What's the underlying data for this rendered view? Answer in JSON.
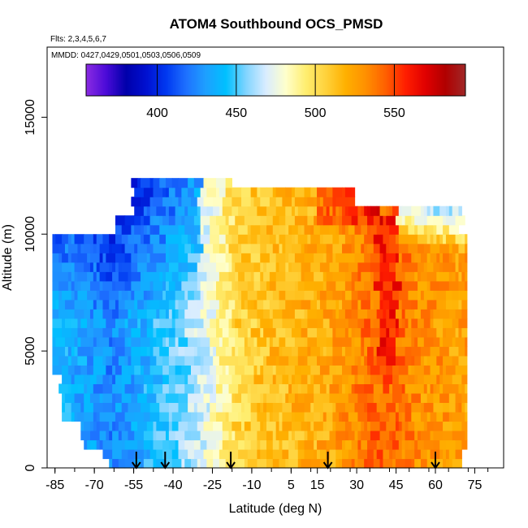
{
  "chart_data": {
    "type": "heatmap",
    "title": "ATOM4 Southbound OCS_PMSD",
    "subtitle_flights": "Flts: 2,3,4,5,6,7",
    "subtitle_dates": "MMDD: 0427,0429,0501,0503,0506,0509",
    "xlabel": "Latitude (deg N)",
    "ylabel": "Altitude (m)",
    "xlim": [
      -88,
      86
    ],
    "ylim": [
      0,
      18000
    ],
    "x_tick_labels": [
      "-85",
      "-70",
      "-55",
      "-40",
      "-25",
      "-10",
      "5",
      "15",
      "30",
      "45",
      "60",
      "75"
    ],
    "x_tick_values": [
      -85,
      -70,
      -55,
      -40,
      -25,
      -10,
      5,
      15,
      30,
      45,
      60,
      75
    ],
    "y_tick_labels": [
      "0",
      "5000",
      "10000",
      "15000"
    ],
    "y_tick_values": [
      0,
      5000,
      10000,
      15000
    ],
    "colorbar": {
      "range": [
        355,
        595
      ],
      "tick_labels": [
        "400",
        "450",
        "500",
        "550"
      ],
      "tick_values": [
        400,
        450,
        500,
        550
      ],
      "colors": [
        "#8a2be2",
        "#4b0bd8",
        "#0000aa",
        "#0010d0",
        "#0038f0",
        "#1e70ff",
        "#1ea0ff",
        "#00c0ff",
        "#80d4ff",
        "#d8ecff",
        "#ffffcc",
        "#ffee70",
        "#ffd23c",
        "#ffb000",
        "#ff9000",
        "#ff6000",
        "#ff1e00",
        "#e00000",
        "#b00000",
        "#a02828"
      ]
    },
    "domain_lat_range": [
      -86,
      72
    ],
    "domain_alt_top": 12500,
    "flight_arrows_lat": [
      -54,
      -43,
      -18,
      19,
      60
    ],
    "field_description_anchors": [
      {
        "lat": -80,
        "value": 438
      },
      {
        "lat": -65,
        "value": 425
      },
      {
        "lat": -50,
        "value": 440
      },
      {
        "lat": -35,
        "value": 458
      },
      {
        "lat": -25,
        "value": 478
      },
      {
        "lat": -15,
        "value": 505
      },
      {
        "lat": 0,
        "value": 515
      },
      {
        "lat": 20,
        "value": 522
      },
      {
        "lat": 40,
        "value": 545
      },
      {
        "lat": 55,
        "value": 530
      },
      {
        "lat": 70,
        "value": 525
      }
    ]
  }
}
